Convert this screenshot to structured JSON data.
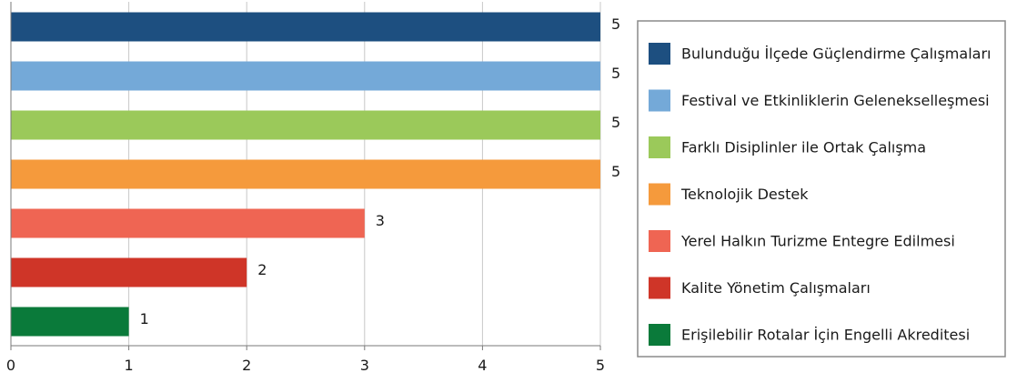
{
  "chart_data": {
    "type": "bar",
    "orientation": "horizontal",
    "categories": [
      "Bulunduğu İlçede Güçlendirme Çalışmaları",
      "Festival ve Etkinliklerin Gelenekselleşmesi",
      "Farklı Disiplinler ile Ortak Çalışma",
      "Teknolojik Destek",
      "Yerel Halkın  Turizme Entegre Edilmesi",
      "Kalite Yönetim Çalışmaları",
      "Erişilebilir Rotalar İçin Engelli Akreditesi"
    ],
    "values": [
      5,
      5,
      5,
      5,
      3,
      2,
      1
    ],
    "colors": [
      "#1d4f80",
      "#74a9d8",
      "#9bc95a",
      "#f59a3c",
      "#ef6553",
      "#cf3528",
      "#0a7a3a"
    ],
    "xlim": [
      0,
      5
    ],
    "xticks": [
      0,
      1,
      2,
      3,
      4,
      5
    ],
    "grid": true,
    "data_labels": true,
    "legend": "right",
    "title": "",
    "xlabel": "",
    "ylabel": ""
  }
}
